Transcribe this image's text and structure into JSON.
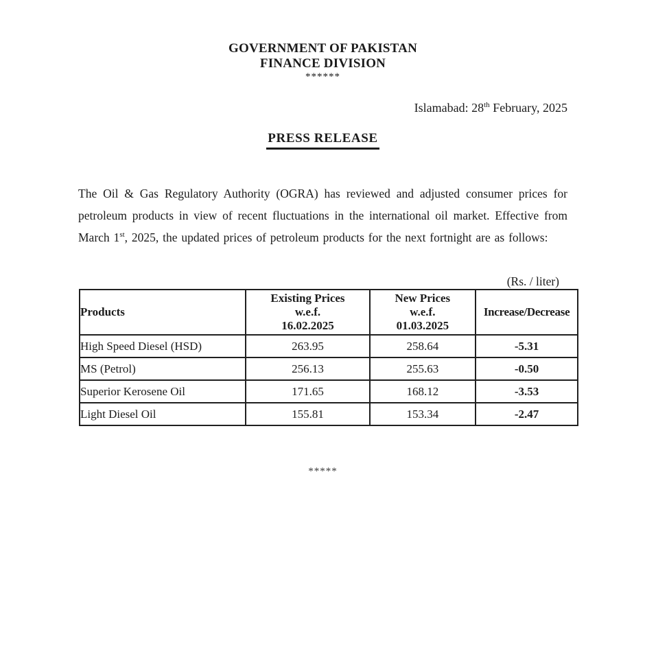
{
  "doc": {
    "org_line1": "GOVERNMENT OF PAKISTAN",
    "org_line2": "FINANCE DIVISION",
    "org_stars": "******",
    "dateline": {
      "pre": "Islamabad: 28",
      "sup": "th",
      "post": " February, 2025"
    },
    "title": "PRESS RELEASE",
    "paragraph": {
      "pre": "The Oil & Gas Regulatory Authority (OGRA) has reviewed and adjusted consumer prices for petroleum products in view of recent fluctuations in the international oil market. Effective from March 1",
      "sup": "st",
      "post": ", 2025, the updated prices of petroleum products for the next fortnight are as follows:"
    },
    "unit_label": "(Rs. / liter)",
    "end_stars": "*****"
  },
  "table": {
    "headers": {
      "products": "Products",
      "existing": [
        "Existing Prices",
        "w.e.f.",
        "16.02.2025"
      ],
      "new_prices": [
        "New Prices",
        "w.e.f.",
        "01.03.2025"
      ],
      "change": "Increase/Decrease"
    },
    "rows": [
      {
        "product": "High Speed Diesel (HSD)",
        "existing": "263.95",
        "new_price": "258.64",
        "change": "-5.31"
      },
      {
        "product": "MS (Petrol)",
        "existing": "256.13",
        "new_price": "255.63",
        "change": "-0.50"
      },
      {
        "product": "Superior Kerosene Oil",
        "existing": "171.65",
        "new_price": "168.12",
        "change": "-3.53"
      },
      {
        "product": "Light Diesel Oil",
        "existing": "155.81",
        "new_price": "153.34",
        "change": "-2.47"
      }
    ]
  }
}
